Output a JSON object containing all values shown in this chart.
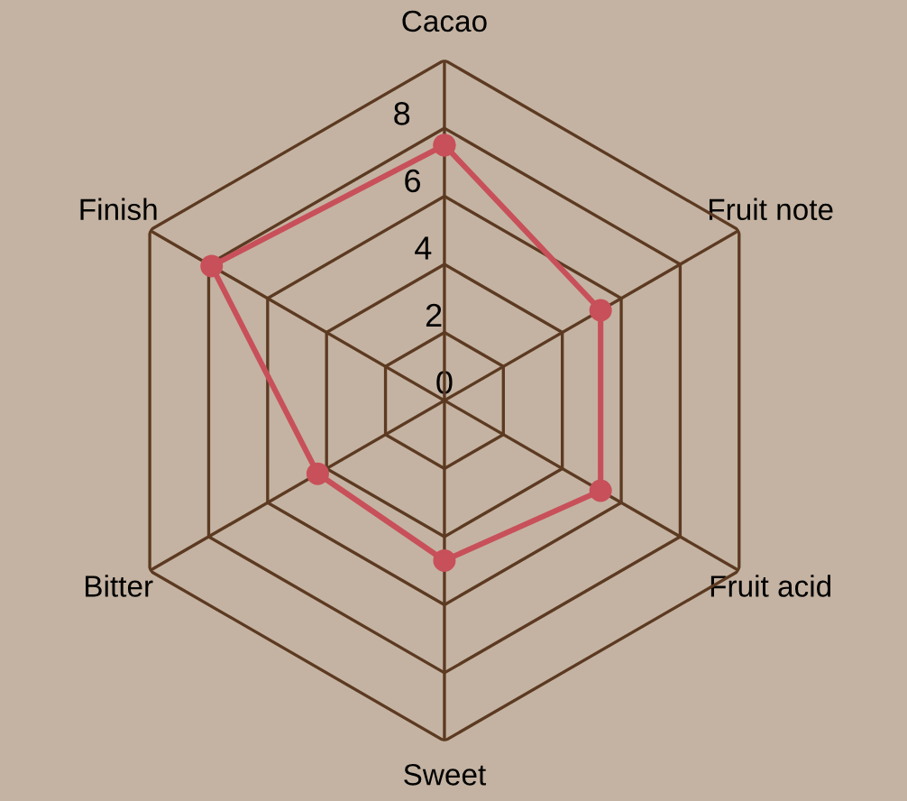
{
  "chart_data": {
    "type": "radar",
    "categories": [
      "Cacao",
      "Fruit note",
      "Fruit acid",
      "Sweet",
      "Bitter",
      "Finish"
    ],
    "series": [
      {
        "color": "#c8505a",
        "values": [
          7.5,
          5.3,
          5.3,
          4.7,
          4.3,
          7.9
        ]
      }
    ],
    "ylim": [
      0,
      10
    ],
    "yticks": [
      0,
      2,
      4,
      6,
      8
    ],
    "grid": true,
    "marker": "circle",
    "line_style": "solid"
  }
}
